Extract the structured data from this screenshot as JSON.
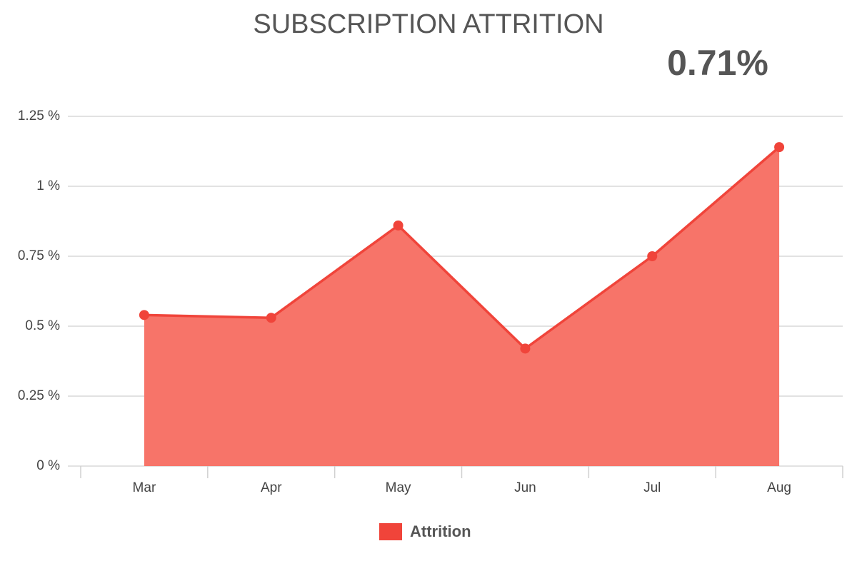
{
  "chart_data": {
    "type": "area",
    "title": "SUBSCRIPTION ATTRITION",
    "headline": "0.71%",
    "categories": [
      "Mar",
      "Apr",
      "May",
      "Jun",
      "Jul",
      "Aug"
    ],
    "series": [
      {
        "name": "Attrition",
        "color": "#f0443a",
        "fill": "#f77469",
        "values": [
          0.54,
          0.53,
          0.86,
          0.42,
          0.75,
          1.14
        ]
      }
    ],
    "ylim": [
      0,
      1.25
    ],
    "yticks": [
      {
        "value": 0,
        "label": "0 %"
      },
      {
        "value": 0.25,
        "label": "0.25 %"
      },
      {
        "value": 0.5,
        "label": "0.5 %"
      },
      {
        "value": 0.75,
        "label": "0.75 %"
      },
      {
        "value": 1,
        "label": "1 %"
      },
      {
        "value": 1.25,
        "label": "1.25 %"
      }
    ],
    "grid": true
  }
}
